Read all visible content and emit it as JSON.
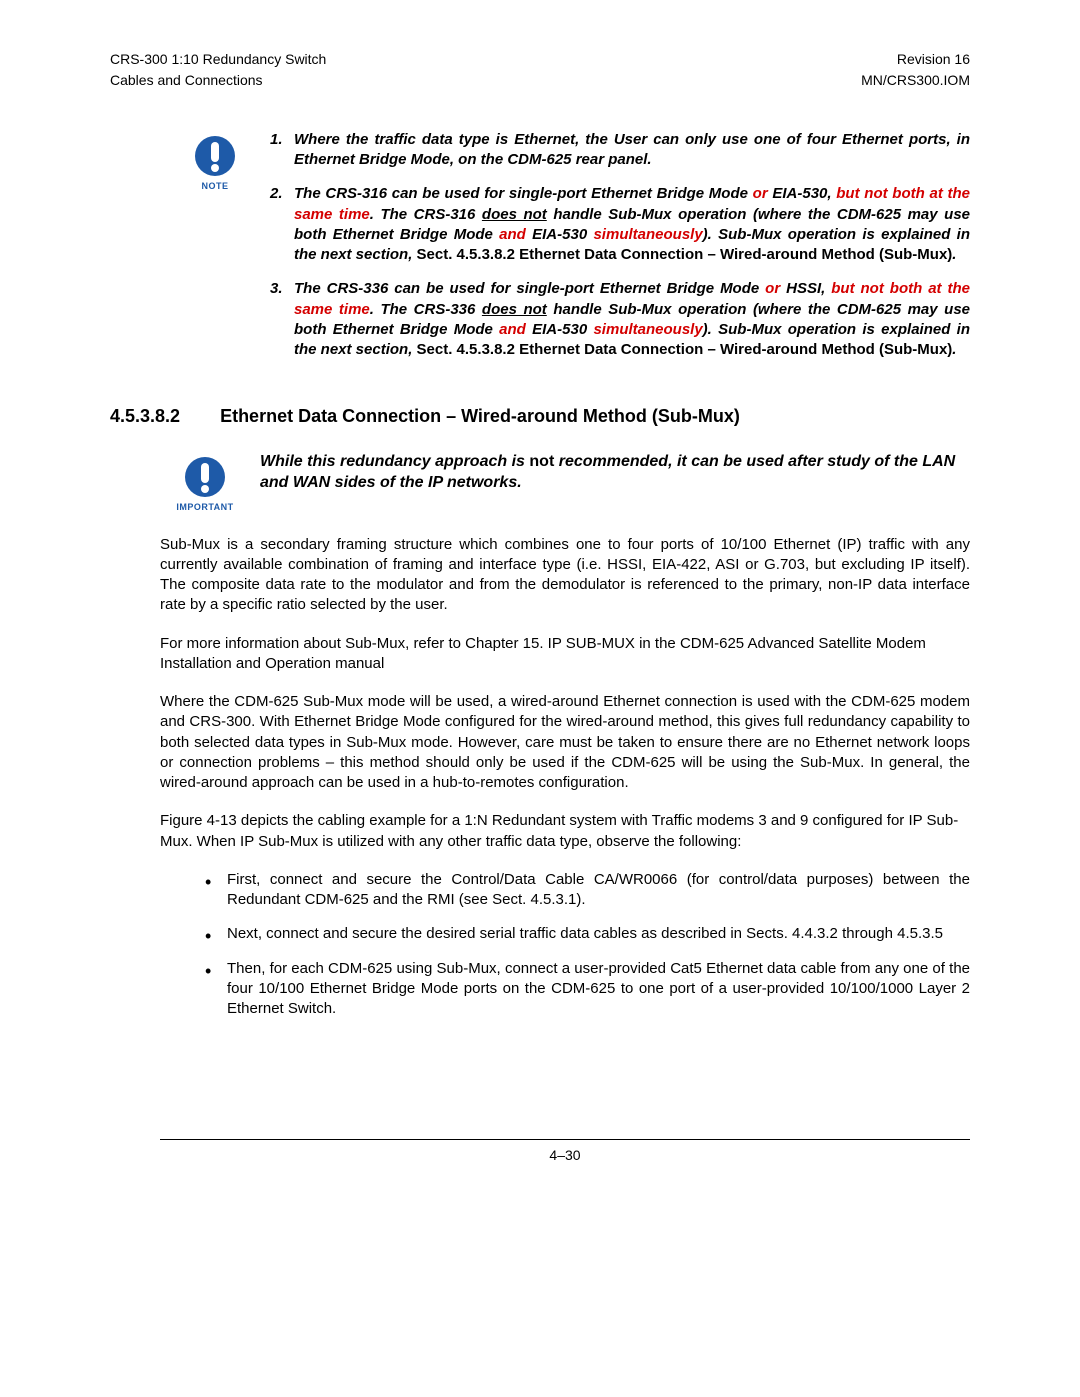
{
  "header": {
    "left1": "CRS-300 1:10 Redundancy Switch",
    "right1": "Revision 16",
    "left2": "Cables and Connections",
    "right2": "MN/CRS300.IOM"
  },
  "note_label": "NOTE",
  "note_icon_color": "#1e5aa8",
  "notes": [
    {
      "num": "1.",
      "html": "Where the traffic data type is Ethernet, the User can only use one of four Ethernet ports, in Ethernet Bridge Mode, on the CDM-625 rear panel."
    },
    {
      "num": "2.",
      "html": "The CRS-316 can be used for single-port Ethernet Bridge Mode <span class=\"red\">or</span> EIA-530, <span class=\"red\">but not both at the same time</span>. The CRS-316 <span class=\"u\">does not</span> handle Sub-Mux operation (where the CDM-625 may use both Ethernet Bridge Mode <span class=\"red\">and</span> EIA-530 <span class=\"red\">simultaneously</span>). Sub-Mux operation is explained in the next section, <span style=\"font-style:normal\">Sect. 4.5.3.8.2 Ethernet Data Connection – Wired-around Method (Sub-Mux)</span>."
    },
    {
      "num": "3.",
      "html": "The CRS-336 can be used for single-port Ethernet Bridge Mode <span class=\"red\">or</span> HSSI, <span class=\"red\">but not both at the same time</span>. The CRS-336 <span class=\"u\">does not</span> handle Sub-Mux operation (where the CDM-625 may use both Ethernet Bridge Mode <span class=\"red\">and</span> EIA-530 <span class=\"red\">simultaneously</span>). Sub-Mux operation is explained in the next section, <span style=\"font-style:normal\">Sect. 4.5.3.8.2 Ethernet Data Connection – Wired-around Method (Sub-Mux)</span>."
    }
  ],
  "section": {
    "number": "4.5.3.8.2",
    "title": "Ethernet Data Connection – Wired-around Method (Sub-Mux)"
  },
  "important_label": "IMPORTANT",
  "important_html": "While this redundancy approach is <span style=\"font-style:normal\">not</span> recommended, it can be used  after study of the LAN and WAN sides of the IP networks.",
  "paragraphs": [
    "Sub-Mux is a secondary framing structure which combines one to four ports of 10/100 Ethernet (IP) traffic with any currently available combination of framing and interface type (i.e. HSSI, EIA-422, ASI or G.703, but excluding IP itself). The composite data rate to the modulator and from the demodulator is referenced to the primary, non-IP data interface rate by a specific ratio selected by the user.",
    "For more information about Sub-Mux, refer to Chapter 15. IP SUB-MUX in the CDM-625 Advanced Satellite Modem Installation and Operation manual",
    "Where the CDM-625 Sub-Mux mode will be used, a wired-around Ethernet connection is used with the CDM-625 modem and CRS-300. With Ethernet Bridge Mode configured for the wired-around method, this gives full redundancy capability to both selected data types in Sub-Mux mode. However, care must be taken to ensure there are no Ethernet network loops or connection problems – this method should only be used if the CDM-625 will be using the Sub-Mux. In general, the wired-around approach can be used in a hub-to-remotes configuration.",
    "Figure 4-13 depicts the cabling example for a 1:N Redundant system with Traffic modems 3 and 9 configured for IP Sub-Mux. When IP Sub-Mux is utilized with any other traffic data type, observe the following:"
  ],
  "bullets": [
    "First, connect and secure the Control/Data Cable CA/WR0066 (for control/data purposes) between the Redundant CDM-625 and the RMI (see Sect. 4.5.3.1).",
    "Next, connect and secure the desired serial traffic data cables as described in Sects. 4.4.3.2 through 4.5.3.5",
    "Then, for each CDM-625 using Sub-Mux, connect a user-provided Cat5 Ethernet data cable from any one of the four 10/100 Ethernet Bridge Mode ports on the CDM-625 to one port of a user-provided 10/100/1000  Layer 2 Ethernet Switch."
  ],
  "footer": "4–30"
}
